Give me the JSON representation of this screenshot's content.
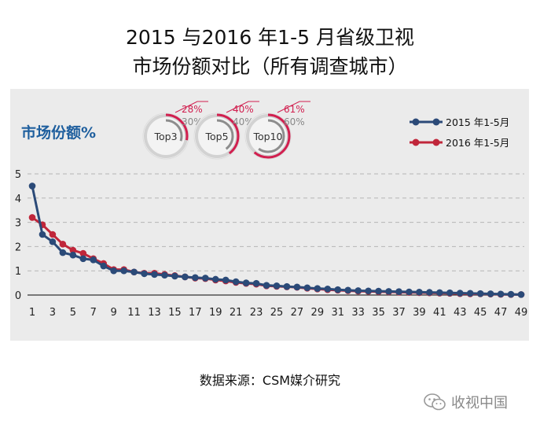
{
  "title_line1": "2015 与2016 年1-5 月省级卫视",
  "title_line2": "市场份额对比（所有调查城市）",
  "source_text": "数据来源：CSM媒介研究",
  "watermark_text": "收视中国",
  "colors": {
    "series_2015": "#2b4a78",
    "series_2016": "#c0263a",
    "ylabel": "#1f5f9e",
    "grid": "#b5b5b5",
    "ring_track": "#d2d2d2",
    "ring_2015": "#8d8d8d",
    "ring_2016": "#d11f4f"
  },
  "top_badges": [
    {
      "label": "Top3",
      "value_2016": "28%",
      "value_2015": "30%",
      "frac_2016": 0.28,
      "frac_2015": 0.3
    },
    {
      "label": "Top5",
      "value_2016": "40%",
      "value_2015": "40%",
      "frac_2016": 0.4,
      "frac_2015": 0.4
    },
    {
      "label": "Top10",
      "value_2016": "61%",
      "value_2015": "60%",
      "frac_2016": 0.61,
      "frac_2015": 0.6
    }
  ],
  "chart_data": {
    "type": "line",
    "ylabel": "市场份额%",
    "ylim": [
      0,
      5
    ],
    "yticks": [
      0,
      1,
      2,
      3,
      4,
      5
    ],
    "x": [
      1,
      2,
      3,
      4,
      5,
      6,
      7,
      8,
      9,
      10,
      11,
      12,
      13,
      14,
      15,
      16,
      17,
      18,
      19,
      20,
      21,
      22,
      23,
      24,
      25,
      26,
      27,
      28,
      29,
      30,
      31,
      32,
      33,
      34,
      35,
      36,
      37,
      38,
      39,
      40,
      41,
      42,
      43,
      44,
      45,
      46,
      47,
      48,
      49
    ],
    "xtick_labels": [
      "1",
      "3",
      "5",
      "7",
      "9",
      "11",
      "13",
      "15",
      "17",
      "19",
      "21",
      "23",
      "25",
      "27",
      "29",
      "31",
      "33",
      "35",
      "37",
      "39",
      "41",
      "43",
      "45",
      "47",
      "49"
    ],
    "legend": "top-right",
    "grid": true,
    "series": [
      {
        "name": "2015 年1-5月",
        "values": [
          4.5,
          2.5,
          2.2,
          1.75,
          1.65,
          1.5,
          1.45,
          1.2,
          1.0,
          1.0,
          0.95,
          0.88,
          0.85,
          0.82,
          0.78,
          0.75,
          0.72,
          0.7,
          0.65,
          0.62,
          0.55,
          0.5,
          0.48,
          0.4,
          0.38,
          0.35,
          0.33,
          0.3,
          0.27,
          0.25,
          0.22,
          0.2,
          0.18,
          0.17,
          0.16,
          0.15,
          0.14,
          0.13,
          0.12,
          0.11,
          0.1,
          0.09,
          0.08,
          0.07,
          0.06,
          0.05,
          0.04,
          0.03,
          0.02
        ]
      },
      {
        "name": "2016 年1-5月",
        "values": [
          3.2,
          2.9,
          2.5,
          2.1,
          1.85,
          1.72,
          1.5,
          1.3,
          1.05,
          1.05,
          0.95,
          0.9,
          0.9,
          0.85,
          0.8,
          0.75,
          0.7,
          0.68,
          0.62,
          0.58,
          0.52,
          0.48,
          0.45,
          0.38,
          0.36,
          0.34,
          0.32,
          0.28,
          0.25,
          0.22,
          0.2,
          0.18,
          0.16,
          0.15,
          0.14,
          0.13,
          0.12,
          0.11,
          0.1,
          0.09,
          0.08,
          0.07,
          0.06,
          0.05,
          0.05,
          0.04,
          0.03,
          0.02,
          0.02
        ]
      }
    ]
  }
}
